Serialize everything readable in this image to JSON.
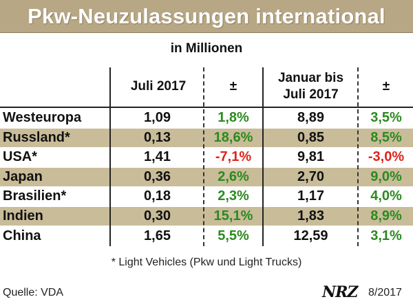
{
  "chart_data": {
    "type": "table",
    "title": "Pkw-Neuzulassungen international",
    "subtitle": "in Millionen",
    "columns": [
      "",
      "Juli 2017",
      "±",
      "Januar bis Juli 2017",
      "±"
    ],
    "rows": [
      {
        "region": "Westeuropa",
        "juli_2017": "1,09",
        "juli_change": "1,8%",
        "jan_jul_2017": "8,89",
        "jan_jul_change": "3,5%"
      },
      {
        "region": "Russland*",
        "juli_2017": "0,13",
        "juli_change": "18,6%",
        "jan_jul_2017": "0,85",
        "jan_jul_change": "8,5%"
      },
      {
        "region": "USA*",
        "juli_2017": "1,41",
        "juli_change": "-7,1%",
        "jan_jul_2017": "9,81",
        "jan_jul_change": "-3,0%"
      },
      {
        "region": "Japan",
        "juli_2017": "0,36",
        "juli_change": "2,6%",
        "jan_jul_2017": "2,70",
        "jan_jul_change": "9,0%"
      },
      {
        "region": "Brasilien*",
        "juli_2017": "0,18",
        "juli_change": "2,3%",
        "jan_jul_2017": "1,17",
        "jan_jul_change": "4,0%"
      },
      {
        "region": "Indien",
        "juli_2017": "0,30",
        "juli_change": "15,1%",
        "jan_jul_2017": "1,83",
        "jan_jul_change": "8,9%"
      },
      {
        "region": "China",
        "juli_2017": "1,65",
        "juli_change": "5,5%",
        "jan_jul_2017": "12,59",
        "jan_jul_change": "3,1%"
      }
    ],
    "footnote": "* Light Vehicles (Pkw und Light Trucks)"
  },
  "header": {
    "col_juli": "Juli 2017",
    "col_pm1": "±",
    "col_jan_line1": "Januar bis",
    "col_jan_line2": "Juli 2017",
    "col_pm2": "±"
  },
  "footer": {
    "source": "Quelle: VDA",
    "logo_text": "NRZ",
    "date": "8/2017"
  },
  "colors": {
    "title_bar": "#b7a784",
    "row_shade": "#c9bc99",
    "positive": "#2b8a1f",
    "negative": "#e0231b"
  }
}
